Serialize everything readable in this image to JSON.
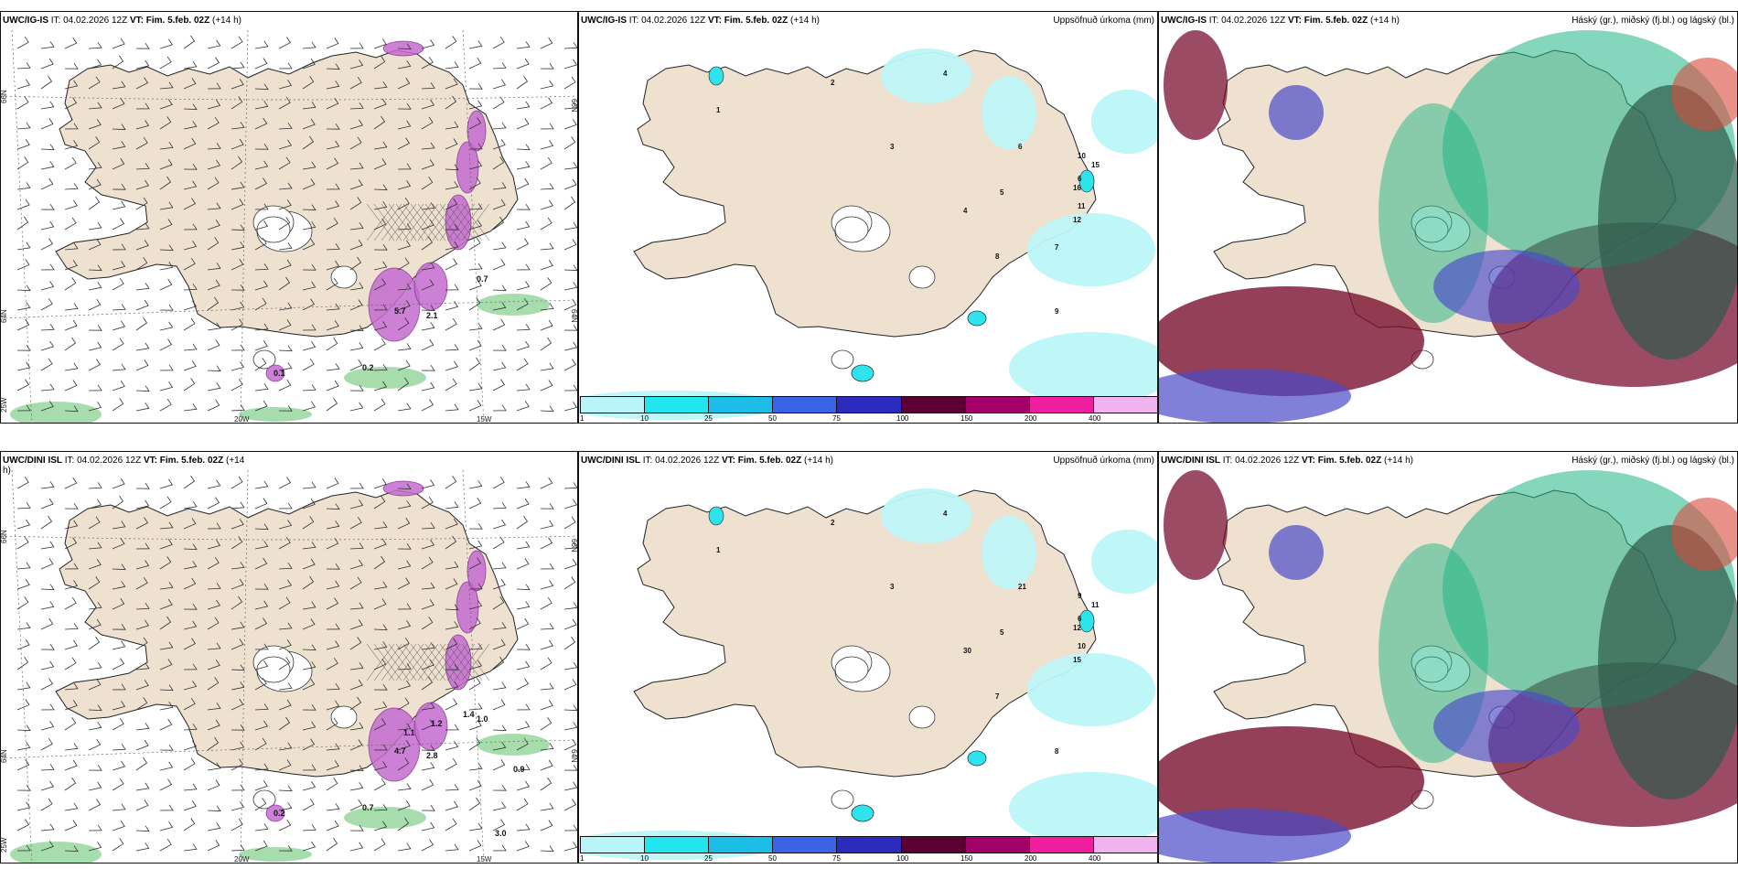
{
  "panels": {
    "top_left": {
      "source": "UWC/IG-IS",
      "it": "IT: 04.02.2026 12Z",
      "vt_label": "VT:",
      "vt": "Fim. 5.feb. 02Z",
      "lead": "(+14 h)"
    },
    "top_mid": {
      "source": "UWC/IG-IS",
      "it": "IT: 04.02.2026 12Z",
      "vt_label": "VT:",
      "vt": "Fim. 5.feb. 02Z",
      "lead": "(+14 h)",
      "right": "Uppsöfnuð úrkoma (mm)"
    },
    "top_right": {
      "source": "UWC/IG-IS",
      "it": "IT: 04.02.2026 12Z",
      "vt_label": "VT:",
      "vt": "Fim. 5.feb. 02Z",
      "lead": "(+14 h)",
      "right": "Háský (gr.), miðský (fj.bl.) og lágský (bl.)"
    },
    "bot_left": {
      "source": "UWC/DINI ISL",
      "it": "IT: 04.02.2026 12Z",
      "vt_label": "VT:",
      "vt": "Fim. 5.feb. 02Z",
      "lead": "(+14",
      "lead2": "h)"
    },
    "bot_mid": {
      "source": "UWC/DINI ISL",
      "it": "IT: 04.02.2026 12Z",
      "vt_label": "VT:",
      "vt": "Fim. 5.feb. 02Z",
      "lead": "(+14 h)",
      "right": "Uppsöfnuð úrkoma (mm)"
    },
    "bot_right": {
      "source": "UWC/DINI ISL",
      "it": "IT: 04.02.2026 12Z",
      "vt_label": "VT:",
      "vt": "Fim. 5.feb. 02Z",
      "lead": "(+14 h)",
      "right": "Háský (gr.), miðský (fj.bl.) og lágský (bl.)"
    }
  },
  "axis_labels": {
    "lat_66": "66N",
    "lat_64": "64N",
    "lon_25": "25W",
    "lon_20": "20W",
    "lon_15": "15W"
  },
  "colorbar": {
    "labels": [
      "1",
      "10",
      "25",
      "50",
      "75",
      "100",
      "150",
      "200",
      "400"
    ],
    "colors": [
      "#b8f4f8",
      "#22e6ee",
      "#1cbde6",
      "#3a63e6",
      "#2b2bbd",
      "#5c0033",
      "#a3006b",
      "#ee1e9e",
      "#f0b5f0"
    ]
  },
  "top_left_values": [
    "5.7",
    "2.1",
    "0.7",
    "0.2",
    "0.1"
  ],
  "bot_left_values": [
    "4.7",
    "2.8",
    "1.0",
    "0.7",
    "0.2",
    "1.1",
    "1.2",
    "1.4",
    "0.9",
    "3.0"
  ],
  "top_mid_values": [
    "2",
    "1",
    "3",
    "4",
    "5",
    "6",
    "8",
    "9",
    "10",
    "11",
    "15",
    "16",
    "12",
    "6",
    "4",
    "7"
  ],
  "bot_mid_values": [
    "2",
    "1",
    "3",
    "4",
    "5",
    "6",
    "7",
    "8",
    "9",
    "10",
    "11",
    "12",
    "15",
    "21",
    "30"
  ],
  "colors": {
    "land": "#eee1d0",
    "precip_light": "#bff6f8",
    "precip_mid": "#2ee3ec",
    "high_cloud": "#1fb586",
    "mid_cloud": "#4a4ac8",
    "low_cloud": "#7a1030"
  }
}
